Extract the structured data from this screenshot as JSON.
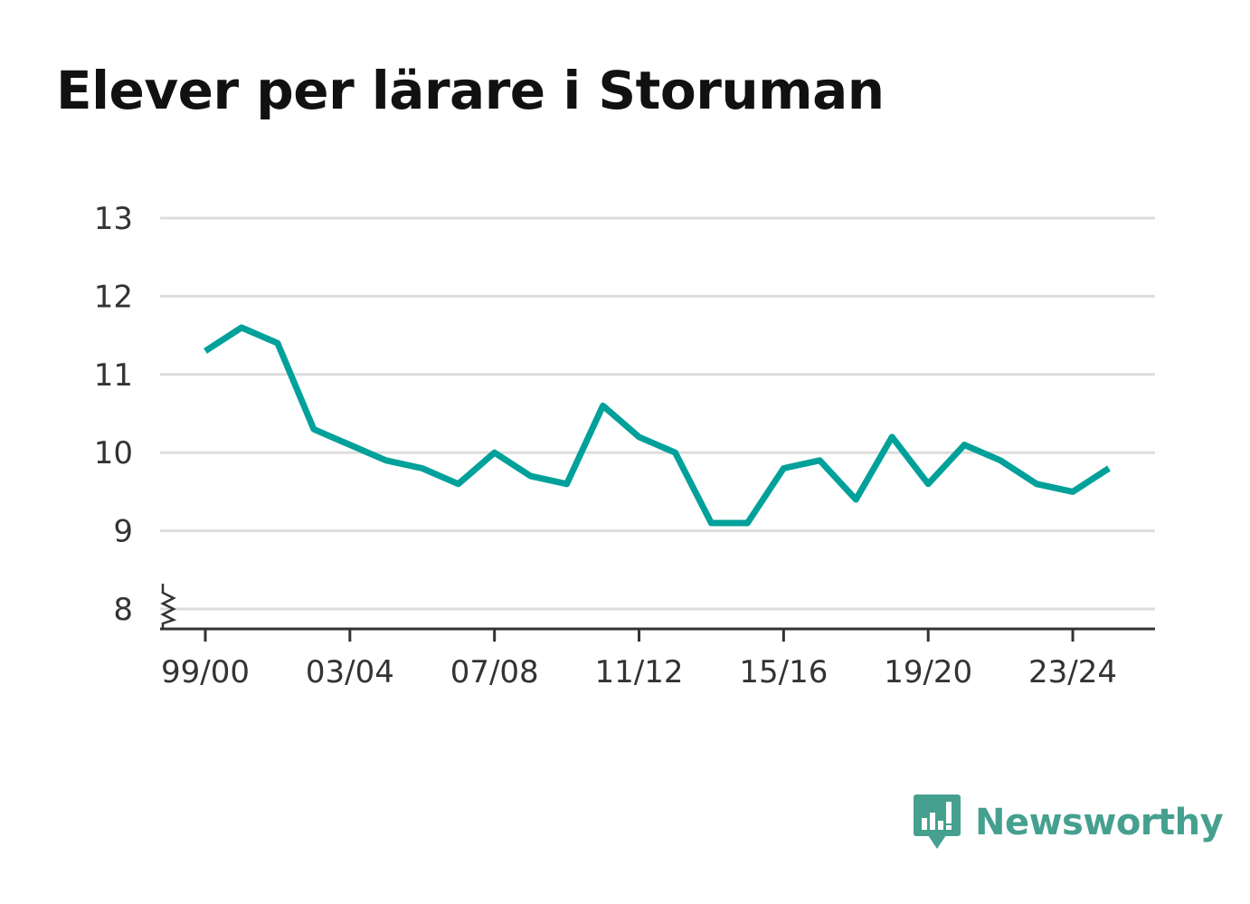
{
  "title": "Elever per lärare i Storuman",
  "brand": {
    "name": "Newsworthy",
    "color": "#45a08f",
    "icon": "newsworthy-logo-icon"
  },
  "colors": {
    "line": "#00a19a",
    "grid": "#dddddd",
    "axis": "#333333"
  },
  "chart_data": {
    "type": "line",
    "title": "Elever per lärare i Storuman",
    "xlabel": "",
    "ylabel": "",
    "ylim": [
      8,
      13
    ],
    "y_axis_break": true,
    "grid": true,
    "legend": "none",
    "y_ticks": [
      8,
      9,
      10,
      11,
      12,
      13
    ],
    "x_tick_labels": [
      "99/00",
      "03/04",
      "07/08",
      "11/12",
      "15/16",
      "19/20",
      "23/24"
    ],
    "categories": [
      "99/00",
      "00/01",
      "01/02",
      "02/03",
      "03/04",
      "04/05",
      "05/06",
      "06/07",
      "07/08",
      "08/09",
      "09/10",
      "10/11",
      "11/12",
      "12/13",
      "13/14",
      "14/15",
      "15/16",
      "16/17",
      "17/18",
      "18/19",
      "19/20",
      "20/21",
      "21/22",
      "22/23",
      "23/24",
      "24/25"
    ],
    "series": [
      {
        "values": [
          11.3,
          11.6,
          11.4,
          10.3,
          10.1,
          9.9,
          9.8,
          9.6,
          10.0,
          9.7,
          9.6,
          10.6,
          10.2,
          10.0,
          9.1,
          9.1,
          9.8,
          9.9,
          9.4,
          10.2,
          9.6,
          10.1,
          9.9,
          9.6,
          9.5,
          9.8
        ]
      }
    ]
  }
}
